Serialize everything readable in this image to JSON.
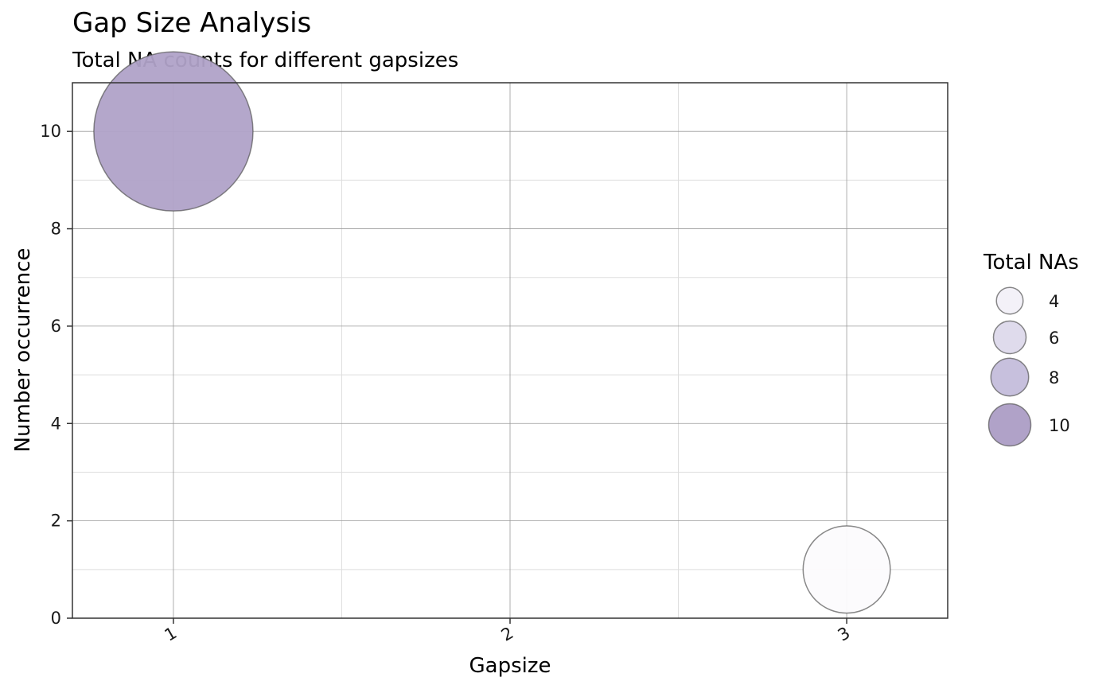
{
  "chart_data": {
    "type": "scatter",
    "title": "Gap Size Analysis",
    "subtitle": "Total NA counts for different gapsizes",
    "xlabel": "Gapsize",
    "ylabel": "Number occurrence",
    "x_categories": [
      "1",
      "2",
      "3"
    ],
    "xlim": [
      0.7,
      3.3
    ],
    "ylim": [
      0,
      11
    ],
    "y_ticks": [
      0,
      2,
      4,
      6,
      8,
      10
    ],
    "grid": true,
    "series": [
      {
        "points": [
          {
            "x": 1,
            "y": 10,
            "total_nas": 10,
            "color": "#b0a2c8"
          },
          {
            "x": 3,
            "y": 1,
            "total_nas": 3,
            "color": "#fcfbfd"
          }
        ]
      }
    ],
    "legend": {
      "title": "Total NAs",
      "position": "right",
      "entries": [
        {
          "label": "4",
          "value": 4,
          "color": "#f3f1f8"
        },
        {
          "label": "6",
          "value": 6,
          "color": "#dfdbec"
        },
        {
          "label": "8",
          "value": 8,
          "color": "#c7c0dd"
        },
        {
          "label": "10",
          "value": 10,
          "color": "#b0a2c8"
        }
      ]
    },
    "colors": {
      "point_stroke": "#555555",
      "grid_major": "#999999",
      "grid_minor": "#dddddd",
      "panel_border": "#333333"
    }
  }
}
